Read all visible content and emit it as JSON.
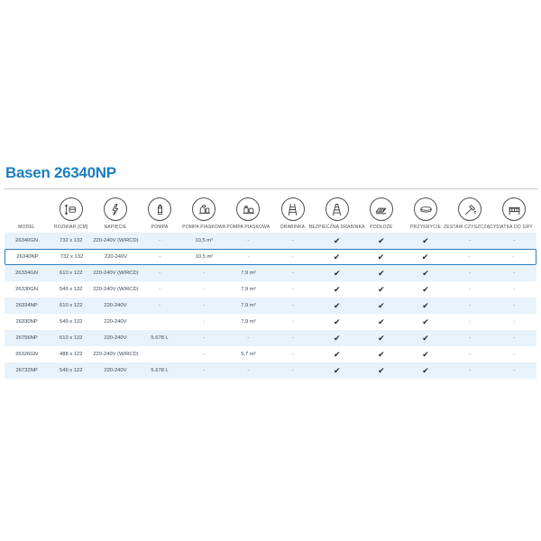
{
  "page": {
    "title": "Basen 26340NP"
  },
  "colors": {
    "title_blue": "#1a7ec2",
    "highlight_border": "#2a7fc1",
    "row_alt_background": "#e8f2fa",
    "check_color": "#182633"
  },
  "table": {
    "check_symbol": "✔",
    "columns": [
      {
        "id": "model",
        "label": "MODEL",
        "icon": null
      },
      {
        "id": "rozmiar",
        "label": "ROZMIAR [CM]",
        "icon": "ruler-icon"
      },
      {
        "id": "napiecie",
        "label": "NAPIĘCIE",
        "icon": "voltage-icon"
      },
      {
        "id": "pompa",
        "label": "POMPA",
        "icon": "pump-icon"
      },
      {
        "id": "pompa_piaskowa_1",
        "label": "POMPA PIASKOWA",
        "icon": "sand-pump-icon"
      },
      {
        "id": "pompa_piaskowa_2",
        "label": "POMPA PIASKOWA",
        "icon": "sand-pump-2-icon"
      },
      {
        "id": "drabinka",
        "label": "DRABINKA",
        "icon": "ladder-icon"
      },
      {
        "id": "bezpieczna_drabinka",
        "label": "BEZPIECZNA DRABINKA",
        "icon": "safety-ladder-icon"
      },
      {
        "id": "podloze",
        "label": "PODŁOŻE",
        "icon": "ground-cloth-icon"
      },
      {
        "id": "przykrycie",
        "label": "PRZYKRYCIE",
        "icon": "cover-icon"
      },
      {
        "id": "zestaw_czyszczacy",
        "label": "ZESTAW CZYSZCZĄCY",
        "icon": "cleaning-kit-icon"
      },
      {
        "id": "siatka_do_gry",
        "label": "SIATKA DO GRY",
        "icon": "game-net-icon"
      }
    ],
    "rows": [
      {
        "highlighted": false,
        "cells": [
          "26340GN",
          "732 x 132",
          "220-240V (W/RCD)",
          "-",
          "10,5 m³",
          "-",
          "-",
          "✔",
          "✔",
          "✔",
          "-",
          "-"
        ]
      },
      {
        "highlighted": true,
        "cells": [
          "26340NP",
          "732 x 132",
          "220-240V",
          "-",
          "10,5 m³",
          "-",
          "-",
          "✔",
          "✔",
          "✔",
          "-",
          "-"
        ]
      },
      {
        "highlighted": false,
        "cells": [
          "26334GN",
          "610 x 122",
          "220-240V (W/RCD)",
          "-",
          "-",
          "7,9 m³",
          "-",
          "✔",
          "✔",
          "✔",
          "-",
          "-"
        ]
      },
      {
        "highlighted": false,
        "cells": [
          "26330GN",
          "549 x 132",
          "220-240V (W/RCD)",
          "-",
          "-",
          "7,9 m³",
          "-",
          "✔",
          "✔",
          "✔",
          "-",
          "-"
        ]
      },
      {
        "highlighted": false,
        "cells": [
          "26334NP",
          "610 x 122",
          "220-240V",
          "-",
          "-",
          "7,9 m³",
          "-",
          "✔",
          "✔",
          "✔",
          "-",
          "-"
        ]
      },
      {
        "highlighted": false,
        "cells": [
          "26330NP",
          "549 x 132",
          "220-240V",
          "",
          "-",
          "7,9 m³",
          "-",
          "✔",
          "✔",
          "✔",
          "-",
          "-"
        ]
      },
      {
        "highlighted": false,
        "cells": [
          "26756NP",
          "610 x 132",
          "220-240V",
          "5.678 L",
          "-",
          "-",
          "-",
          "✔",
          "✔",
          "✔",
          "-",
          "-"
        ]
      },
      {
        "highlighted": false,
        "cells": [
          "26326GN",
          "488 x 122",
          "220-240V (W/RCD)",
          "",
          "-",
          "5,7 m³",
          "-",
          "✔",
          "✔",
          "✔",
          "-",
          "-"
        ]
      },
      {
        "highlighted": false,
        "cells": [
          "26732NP",
          "549 x 122",
          "220-240V",
          "5.678 L",
          "-",
          "-",
          "-",
          "✔",
          "✔",
          "✔",
          "-",
          "-"
        ]
      }
    ]
  }
}
